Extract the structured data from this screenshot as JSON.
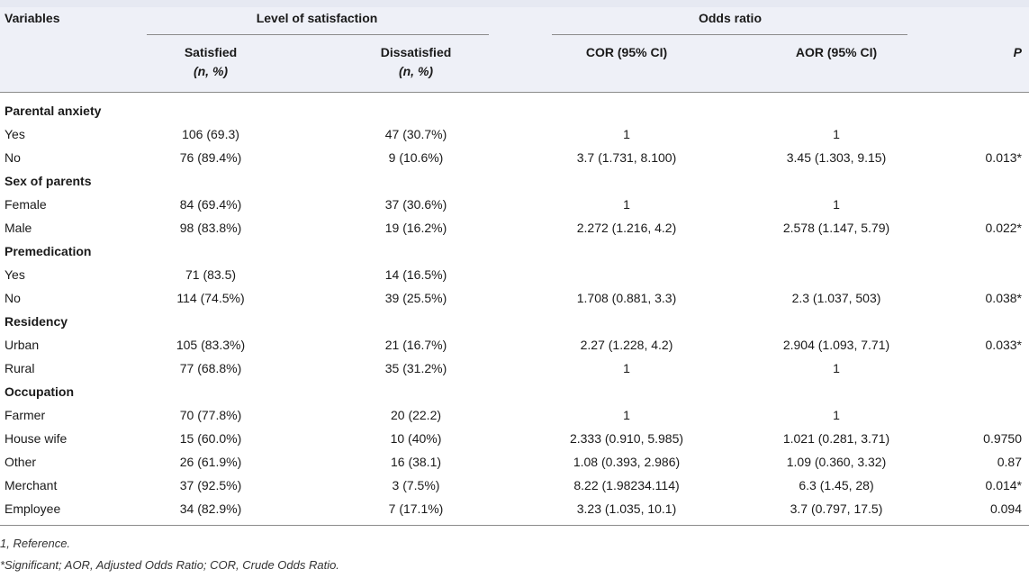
{
  "header": {
    "variables": "Variables",
    "level": "Level of satisfaction",
    "odds": "Odds ratio",
    "satisfied": "Satisfied",
    "satisfied_sub": "(n, %)",
    "dissatisfied": "Dissatisfied",
    "dissatisfied_sub": "(n, %)",
    "cor": "COR (95% CI)",
    "aor": "AOR (95% CI)",
    "p": "P"
  },
  "rows": [
    {
      "label": "Parental anxiety",
      "category": true
    },
    {
      "label": "Yes",
      "sat": "106 (69.3)",
      "dis": "47 (30.7%)",
      "cor": "1",
      "aor": "1",
      "p": ""
    },
    {
      "label": "No",
      "sat": "76 (89.4%)",
      "dis": "9 (10.6%)",
      "cor": "3.7 (1.731, 8.100)",
      "aor": "3.45 (1.303, 9.15)",
      "p": "0.013*"
    },
    {
      "label": "Sex of parents",
      "category": true
    },
    {
      "label": "Female",
      "sat": "84 (69.4%)",
      "dis": "37 (30.6%)",
      "cor": "1",
      "aor": "1",
      "p": ""
    },
    {
      "label": "Male",
      "sat": "98 (83.8%)",
      "dis": "19 (16.2%)",
      "cor": "2.272 (1.216, 4.2)",
      "aor": "2.578 (1.147, 5.79)",
      "p": "0.022*"
    },
    {
      "label": "Premedication",
      "category": true
    },
    {
      "label": "Yes",
      "sat": "71 (83.5)",
      "dis": "14 (16.5%)",
      "cor": "",
      "aor": "",
      "p": ""
    },
    {
      "label": "No",
      "sat": "114 (74.5%)",
      "dis": "39 (25.5%)",
      "cor": "1.708 (0.881, 3.3)",
      "aor": "2.3 (1.037, 503)",
      "p": "0.038*"
    },
    {
      "label": "Residency",
      "category": true
    },
    {
      "label": "Urban",
      "sat": "105 (83.3%)",
      "dis": "21 (16.7%)",
      "cor": "2.27 (1.228, 4.2)",
      "aor": "2.904 (1.093, 7.71)",
      "p": "0.033*"
    },
    {
      "label": "Rural",
      "sat": "77 (68.8%)",
      "dis": "35 (31.2%)",
      "cor": "1",
      "aor": "1",
      "p": ""
    },
    {
      "label": "Occupation",
      "category": true
    },
    {
      "label": "Farmer",
      "sat": "70 (77.8%)",
      "dis": "20 (22.2)",
      "cor": "1",
      "aor": "1",
      "p": ""
    },
    {
      "label": "House wife",
      "sat": "15 (60.0%)",
      "dis": "10 (40%)",
      "cor": "2.333 (0.910, 5.985)",
      "aor": "1.021 (0.281, 3.71)",
      "p": "0.9750"
    },
    {
      "label": "Other",
      "sat": "26 (61.9%)",
      "dis": "16 (38.1)",
      "cor": "1.08 (0.393, 2.986)",
      "aor": "1.09 (0.360, 3.32)",
      "p": "0.87"
    },
    {
      "label": "Merchant",
      "sat": "37 (92.5%)",
      "dis": "3 (7.5%)",
      "cor": "8.22 (1.98234.114)",
      "aor": "6.3 (1.45, 28)",
      "p": "0.014*"
    },
    {
      "label": "Employee",
      "sat": "34 (82.9%)",
      "dis": "7 (17.1%)",
      "cor": "3.23 (1.035, 10.1)",
      "aor": "3.7 (0.797, 17.5)",
      "p": "0.094"
    }
  ],
  "footnotes": {
    "ref": "1, Reference.",
    "sig": "*Significant; AOR, Adjusted Odds Ratio; COR, Crude Odds Ratio."
  }
}
